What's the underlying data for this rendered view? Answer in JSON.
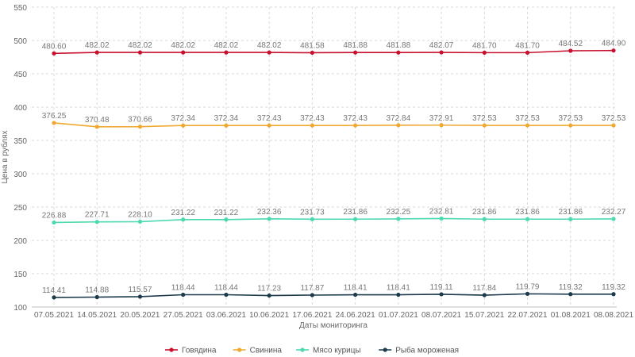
{
  "chart_data": {
    "type": "line",
    "title": "",
    "xlabel": "Даты мониторинга",
    "ylabel": "Цена в рублях",
    "ylim": [
      100,
      550
    ],
    "yticks": [
      100,
      150,
      200,
      250,
      300,
      350,
      400,
      450,
      500,
      550
    ],
    "grid": "both-dashed",
    "legend_position": "bottom-center",
    "categories": [
      "07.05.2021",
      "14.05.2021",
      "20.05.2021",
      "27.05.2021",
      "03.06.2021",
      "10.06.2021",
      "17.06.2021",
      "24.06.2021",
      "01.07.2021",
      "08.07.2021",
      "15.07.2021",
      "22.07.2021",
      "01.08.2021",
      "08.08.2021"
    ],
    "series": [
      {
        "name": "Говядина",
        "color": "#c8102e",
        "values": [
          480.6,
          482.02,
          482.02,
          482.02,
          482.02,
          482.02,
          481.58,
          481.88,
          481.88,
          482.07,
          481.7,
          481.7,
          484.52,
          484.9
        ],
        "labels": [
          "480.60",
          "482.02",
          "482.02",
          "482.02",
          "482.02",
          "482.02",
          "481.58",
          "481.88",
          "481.88",
          "482.07",
          "481.70",
          "481.70",
          "484.52",
          "484.90"
        ]
      },
      {
        "name": "Свинина",
        "color": "#f0a830",
        "values": [
          376.25,
          370.48,
          370.66,
          372.34,
          372.34,
          372.43,
          372.43,
          372.43,
          372.84,
          372.91,
          372.53,
          372.53,
          372.53,
          372.53
        ],
        "labels": [
          "376.25",
          "370.48",
          "370.66",
          "372.34",
          "372.34",
          "372.43",
          "372.43",
          "372.43",
          "372.84",
          "372.91",
          "372.53",
          "372.53",
          "372.53",
          "372.53"
        ]
      },
      {
        "name": "Мясо курицы",
        "color": "#4dd9b0",
        "values": [
          226.88,
          227.71,
          228.1,
          231.22,
          231.22,
          232.36,
          231.73,
          231.86,
          232.25,
          232.81,
          231.86,
          231.86,
          231.86,
          232.27
        ],
        "labels": [
          "226.88",
          "227.71",
          "228.10",
          "231.22",
          "231.22",
          "232.36",
          "231.73",
          "231.86",
          "232.25",
          "232.81",
          "231.86",
          "231.86",
          "231.86",
          "232.27"
        ]
      },
      {
        "name": "Рыба мороженая",
        "color": "#1b3a4b",
        "values": [
          114.41,
          114.88,
          115.57,
          118.44,
          118.44,
          117.23,
          117.87,
          118.41,
          118.41,
          119.11,
          117.84,
          119.79,
          119.32,
          119.32
        ],
        "labels": [
          "114.41",
          "114.88",
          "115.57",
          "118.44",
          "118.44",
          "117.23",
          "117.87",
          "118.41",
          "118.41",
          "119.11",
          "117.84",
          "119.79",
          "119.32",
          "119.32"
        ]
      }
    ]
  }
}
